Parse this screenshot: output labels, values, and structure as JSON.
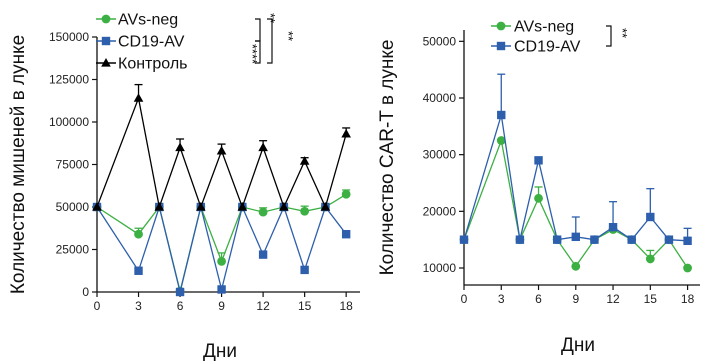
{
  "chart_data": [
    {
      "type": "line",
      "xlabel": "Дни",
      "ylabel": "Количество мишеней в лунке",
      "xlim": [
        0,
        19
      ],
      "ylim": [
        0,
        150000
      ],
      "xticks": [
        0,
        3,
        6,
        9,
        12,
        15,
        18
      ],
      "yticks": [
        0,
        25000,
        50000,
        75000,
        100000,
        125000,
        150000
      ],
      "tick_labels_x": [
        "0",
        "3",
        "6",
        "9",
        "12",
        "15",
        "18"
      ],
      "tick_labels_y": [
        "0",
        "25000",
        "50000",
        "75000",
        "100000",
        "125000",
        "150000"
      ],
      "legend_position": "top-left",
      "significance": [
        {
          "pair": [
            "AVs-neg",
            "CD19-AV"
          ],
          "label": "**"
        },
        {
          "pair": [
            "AVs-neg",
            "Контроль"
          ],
          "label": "**"
        },
        {
          "pair": [
            "CD19-AV",
            "Контроль"
          ],
          "label": "****"
        }
      ],
      "series": [
        {
          "name": "AVs-neg",
          "color": "#3cb043",
          "marker": "circle",
          "x": [
            0,
            3,
            4.5,
            6,
            7.5,
            9,
            10.5,
            12,
            13.5,
            15,
            16.5,
            18
          ],
          "y": [
            50000,
            34000,
            50000,
            500,
            50000,
            18000,
            50000,
            47000,
            50000,
            47500,
            50000,
            57500
          ],
          "err": [
            0,
            3500,
            0,
            0,
            0,
            5000,
            0,
            2500,
            0,
            3000,
            0,
            2500
          ]
        },
        {
          "name": "CD19-AV",
          "color": "#2d5fad",
          "marker": "square",
          "x": [
            0,
            3,
            4.5,
            6,
            7.5,
            9,
            10.5,
            12,
            13.5,
            15,
            16.5,
            18
          ],
          "y": [
            50000,
            12500,
            50000,
            0,
            50000,
            1500,
            50000,
            22000,
            50000,
            13000,
            50000,
            34000
          ],
          "err": [
            0,
            0,
            0,
            0,
            0,
            0,
            0,
            0,
            0,
            0,
            0,
            0
          ]
        },
        {
          "name": "Контроль",
          "color": "#000000",
          "marker": "triangle",
          "x": [
            0,
            3,
            4.5,
            6,
            7.5,
            9,
            10.5,
            12,
            13.5,
            15,
            16.5,
            18
          ],
          "y": [
            50000,
            114000,
            50000,
            85000,
            50000,
            83000,
            50000,
            85000,
            50000,
            77000,
            50000,
            93000
          ],
          "err": [
            0,
            8000,
            0,
            5000,
            0,
            4000,
            0,
            4000,
            0,
            2000,
            0,
            3500
          ]
        }
      ]
    },
    {
      "type": "line",
      "xlabel": "Дни",
      "ylabel": "Количество  CAR-T в лунке",
      "xlim": [
        0,
        19
      ],
      "ylim": [
        7000,
        52000
      ],
      "xticks": [
        0,
        3,
        6,
        9,
        12,
        15,
        18
      ],
      "yticks": [
        10000,
        20000,
        30000,
        40000,
        50000
      ],
      "tick_labels_x": [
        "0",
        "3",
        "6",
        "9",
        "12",
        "15",
        "18"
      ],
      "tick_labels_y": [
        "10000",
        "20000",
        "30000",
        "40000",
        "50000"
      ],
      "legend_position": "top-left",
      "significance": [
        {
          "pair": [
            "AVs-neg",
            "CD19-AV"
          ],
          "label": "**"
        }
      ],
      "series": [
        {
          "name": "AVs-neg",
          "color": "#3cb043",
          "marker": "circle",
          "x": [
            0,
            3,
            4.5,
            6,
            7.5,
            9,
            10.5,
            12,
            13.5,
            15,
            16.5,
            18
          ],
          "y": [
            15000,
            32500,
            15000,
            22300,
            15000,
            10300,
            15000,
            16800,
            15000,
            11600,
            15000,
            10000
          ],
          "err": [
            0,
            0,
            0,
            2000,
            0,
            0,
            0,
            0,
            0,
            1500,
            0,
            0
          ]
        },
        {
          "name": "CD19-AV",
          "color": "#2d5fad",
          "marker": "square",
          "x": [
            0,
            3,
            4.5,
            6,
            7.5,
            9,
            10.5,
            12,
            13.5,
            15,
            16.5,
            18
          ],
          "y": [
            15000,
            37000,
            15000,
            29000,
            15000,
            15500,
            15000,
            17200,
            15000,
            19000,
            15000,
            14800
          ],
          "err": [
            0,
            7200,
            0,
            0,
            0,
            3500,
            0,
            4500,
            0,
            5000,
            0,
            2200
          ]
        }
      ]
    }
  ]
}
